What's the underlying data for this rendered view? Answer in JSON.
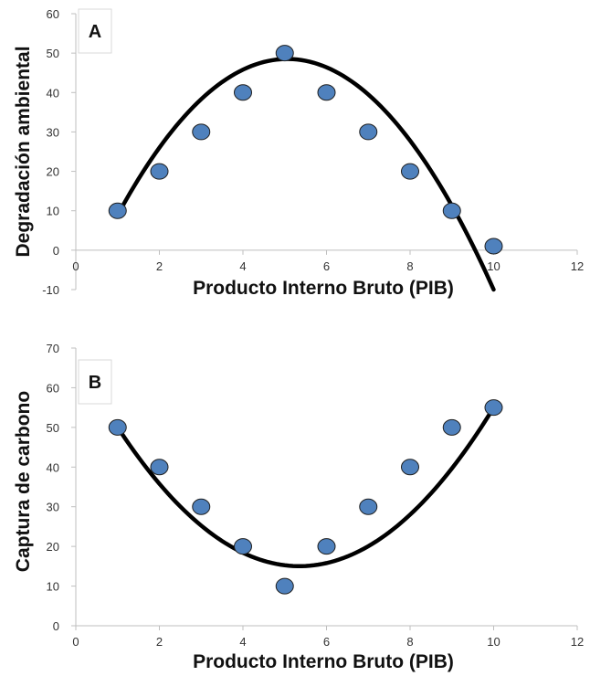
{
  "chart_data": [
    {
      "panel": "A",
      "type": "scatter",
      "xlabel": "Producto Interno Bruto (PIB)",
      "ylabel": "Degradación ambiental",
      "xlim": [
        0,
        12
      ],
      "ylim": [
        -10,
        60
      ],
      "xticks": [
        "0",
        "2",
        "4",
        "6",
        "8",
        "10",
        "12"
      ],
      "yticks": [
        "-10",
        "0",
        "10",
        "20",
        "30",
        "40",
        "50",
        "60"
      ],
      "grid": false,
      "series": [
        {
          "x": [
            1,
            2,
            3,
            4,
            5,
            6,
            7,
            8,
            9,
            10
          ],
          "y": [
            10,
            20,
            30,
            40,
            50,
            40,
            30,
            20,
            10,
            1
          ],
          "marker_color": "#4f81bd"
        }
      ],
      "trendline": {
        "kind": "polynomial-2",
        "coefficients": [
          -2.4,
          24.3,
          -13
        ],
        "x_range": [
          1,
          10
        ],
        "color": "#000000"
      }
    },
    {
      "panel": "B",
      "type": "scatter",
      "xlabel": "Producto Interno Bruto (PIB)",
      "ylabel": "Captura de carbono",
      "xlim": [
        0,
        12
      ],
      "ylim": [
        0,
        70
      ],
      "xticks": [
        "0",
        "2",
        "4",
        "6",
        "8",
        "10",
        "12"
      ],
      "yticks": [
        "0",
        "10",
        "20",
        "30",
        "40",
        "50",
        "60",
        "70"
      ],
      "grid": false,
      "series": [
        {
          "x": [
            1,
            2,
            3,
            4,
            5,
            6,
            7,
            8,
            9,
            10
          ],
          "y": [
            50,
            40,
            30,
            20,
            10,
            20,
            30,
            40,
            50,
            55
          ],
          "marker_color": "#4f81bd"
        }
      ],
      "trendline": {
        "kind": "polynomial-2",
        "coefficients": [
          1.85,
          -19.8,
          68.0
        ],
        "x_range": [
          1,
          10
        ],
        "color": "#000000"
      }
    }
  ]
}
